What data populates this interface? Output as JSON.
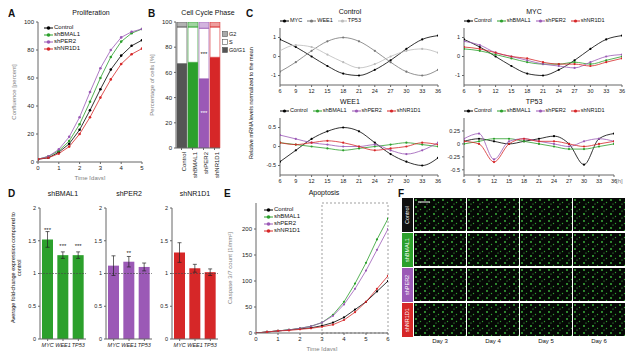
{
  "chart_data": [
    {
      "panel_label": "A",
      "type": "line",
      "title": "Proliferation",
      "xlabel": "Time [days]",
      "ylabel": "Confluence [percent]",
      "x": [
        0,
        0.5,
        1,
        1.5,
        2,
        2.5,
        3,
        3.5,
        4,
        4.5,
        5
      ],
      "xlim": [
        0,
        5
      ],
      "xticks": [
        0,
        1,
        2,
        3,
        4,
        5
      ],
      "ylim": [
        0,
        100
      ],
      "yticks": [
        0,
        20,
        40,
        60,
        80,
        100
      ],
      "legend": "top-left",
      "marker": "circle",
      "series": [
        {
          "name": "Control",
          "color": "#000000",
          "values": [
            2,
            3,
            7,
            13,
            23,
            37,
            52,
            66,
            76,
            83,
            87
          ]
        },
        {
          "name": "shBMAL1",
          "color": "#2ca02c",
          "values": [
            2,
            4,
            8,
            15,
            27,
            43,
            60,
            75,
            86,
            92,
            95
          ]
        },
        {
          "name": "shPER2",
          "color": "#9b59b6",
          "values": [
            2,
            4,
            9,
            18,
            32,
            50,
            67,
            80,
            89,
            93,
            95
          ]
        },
        {
          "name": "shNR1D1",
          "color": "#d62728",
          "values": [
            2,
            3,
            6,
            11,
            20,
            32,
            46,
            59,
            70,
            77,
            81
          ]
        }
      ]
    },
    {
      "panel_label": "B",
      "type": "bar",
      "stacked": true,
      "title": "Cell Cycle Phase",
      "ylabel": "Percentage of cells [%]",
      "categories": [
        "Control",
        "shBMAL1",
        "shPER2",
        "shNR1D1"
      ],
      "colors": [
        "#555555",
        "#2ca02c",
        "#9b59b6",
        "#d62728"
      ],
      "ylim": [
        0,
        100
      ],
      "yticks": [
        0,
        20,
        40,
        60,
        80,
        100
      ],
      "legend": "right",
      "series": [
        {
          "name": "G0/G1",
          "color": "#555555",
          "values": [
            67,
            68,
            55,
            72
          ]
        },
        {
          "name": "S",
          "color": "#ffffff",
          "values": [
            29,
            28,
            40,
            24
          ]
        },
        {
          "name": "G2",
          "color": "#aaaaaa",
          "values": [
            4,
            4,
            5,
            4
          ]
        }
      ],
      "annotations": [
        {
          "category": "shPER2",
          "series": "G0/G1",
          "text": "***"
        },
        {
          "category": "shPER2",
          "series": "S",
          "text": "***"
        }
      ]
    },
    {
      "panel_label": "C",
      "type": "line",
      "title": "Control",
      "ylabel": "Relative mRNA levels normalized to the mean",
      "x": [
        6,
        9,
        12,
        15,
        18,
        21,
        24,
        27,
        30,
        33,
        36
      ],
      "xlim": [
        6,
        36
      ],
      "xticks": [
        6,
        9,
        12,
        15,
        18,
        21,
        24,
        27,
        30,
        33,
        36
      ],
      "ylim": [
        -1.5,
        1.5
      ],
      "yticks": [
        -1,
        0,
        1
      ],
      "legend": "top",
      "marker": "circle",
      "series": [
        {
          "name": "MYC",
          "color": "#000000",
          "values": [
            0.9,
            0.5,
            0,
            -0.5,
            -0.9,
            -1,
            -0.7,
            -0.2,
            0.4,
            0.9,
            1.1
          ]
        },
        {
          "name": "WEE1",
          "color": "#777777",
          "values": [
            -0.8,
            -0.3,
            0.3,
            0.8,
            1,
            0.8,
            0.3,
            -0.3,
            -0.8,
            -1,
            -0.7
          ]
        },
        {
          "name": "TP53",
          "color": "#bbbbbb",
          "values": [
            0.3,
            0.6,
            0.5,
            0.1,
            -0.3,
            -0.6,
            -0.4,
            0,
            0.3,
            0.4,
            0.2
          ]
        }
      ]
    },
    {
      "type": "line",
      "title": "MYC",
      "x": [
        6,
        9,
        12,
        15,
        18,
        21,
        24,
        27,
        30,
        33,
        36
      ],
      "xlim": [
        6,
        36
      ],
      "xticks": [
        6,
        9,
        12,
        15,
        18,
        21,
        24,
        27,
        30,
        33,
        36
      ],
      "ylim": [
        -1.5,
        1.5
      ],
      "yticks": [
        -1,
        0,
        1
      ],
      "legend": "top",
      "marker": "circle",
      "series": [
        {
          "name": "Control",
          "color": "#000000",
          "values": [
            0.9,
            0.5,
            0,
            -0.5,
            -0.9,
            -1,
            -0.7,
            -0.2,
            0.4,
            0.9,
            1.1
          ]
        },
        {
          "name": "shBMAL1",
          "color": "#2ca02c",
          "values": [
            0.4,
            0.3,
            0.1,
            -0.1,
            -0.3,
            -0.4,
            -0.4,
            -0.3,
            -0.4,
            -0.2,
            0
          ]
        },
        {
          "name": "shPER2",
          "color": "#9b59b6",
          "values": [
            0.8,
            0.6,
            0.2,
            0,
            -0.2,
            -0.4,
            -0.5,
            -0.6,
            -0.3,
            0,
            0.1
          ]
        },
        {
          "name": "shNR1D1",
          "color": "#d62728",
          "values": [
            0.5,
            0.4,
            0.2,
            0,
            -0.1,
            -0.3,
            -0.4,
            -0.4,
            -0.5,
            -0.3,
            -0.1
          ]
        }
      ]
    },
    {
      "type": "line",
      "title": "WEE1",
      "x": [
        6,
        9,
        12,
        15,
        18,
        21,
        24,
        27,
        30,
        33,
        36
      ],
      "xlim": [
        6,
        36
      ],
      "xticks": [
        6,
        9,
        12,
        15,
        18,
        21,
        24,
        27,
        30,
        33,
        36
      ],
      "ylim": [
        -0.75,
        0.75
      ],
      "yticks": [
        -0.5,
        0,
        0.5
      ],
      "legend": "top",
      "marker": "circle",
      "series": [
        {
          "name": "Control",
          "color": "#000000",
          "values": [
            -0.4,
            -0.1,
            0.2,
            0.4,
            0.5,
            0.4,
            0.1,
            -0.2,
            -0.4,
            -0.5,
            -0.3
          ]
        },
        {
          "name": "shBMAL1",
          "color": "#2ca02c",
          "values": [
            0.1,
            0.05,
            0,
            -0.05,
            -0.1,
            -0.05,
            0,
            0.05,
            0.1,
            0.05,
            0
          ]
        },
        {
          "name": "shPER2",
          "color": "#9b59b6",
          "values": [
            0.3,
            0.2,
            0.1,
            0.05,
            0,
            0,
            0.05,
            -0.1,
            -0.2,
            -0.1,
            0.1
          ]
        },
        {
          "name": "shNR1D1",
          "color": "#d62728",
          "values": [
            0.1,
            0.05,
            0.1,
            0.15,
            0.1,
            0,
            -0.1,
            -0.05,
            0,
            0.1,
            0.05
          ]
        }
      ]
    },
    {
      "type": "line",
      "title": "TP53",
      "xlabel": "[h]",
      "x": [
        6,
        9,
        12,
        15,
        18,
        21,
        24,
        27,
        30,
        33,
        36
      ],
      "xlim": [
        6,
        36
      ],
      "xticks": [
        6,
        9,
        12,
        15,
        18,
        21,
        24,
        27,
        30,
        33,
        36
      ],
      "ylim": [
        -0.6,
        0.5
      ],
      "yticks": [
        -0.5,
        -0.25,
        0,
        0.25
      ],
      "legend": "top",
      "marker": "circle",
      "series": [
        {
          "name": "Control",
          "color": "#000000",
          "values": [
            0.05,
            0.1,
            0.05,
            0,
            0.05,
            0.1,
            0.15,
            0,
            -0.4,
            0.1,
            0.2
          ]
        },
        {
          "name": "shBMAL1",
          "color": "#2ca02c",
          "values": [
            0,
            0.05,
            0.1,
            0.1,
            0.05,
            0,
            -0.05,
            -0.1,
            -0.1,
            -0.05,
            0
          ]
        },
        {
          "name": "shPER2",
          "color": "#9b59b6",
          "values": [
            0.1,
            0.2,
            -0.3,
            0.05,
            0.1,
            0.05,
            0,
            -0.05,
            0.05,
            0.1,
            0.05
          ]
        },
        {
          "name": "shNR1D1",
          "color": "#d62728",
          "values": [
            0.05,
            0,
            -0.35,
            0,
            0.1,
            0.05,
            0.05,
            0,
            -0.05,
            0,
            0.05
          ]
        }
      ]
    },
    {
      "panel_label": "D",
      "type": "bar",
      "title": "shBMAL1",
      "ylabel": "Average fold-change expression compared to control",
      "categories": [
        "MYC",
        "WEE1",
        "TP53"
      ],
      "values": [
        1.52,
        1.28,
        1.28
      ],
      "errors": [
        0.12,
        0.05,
        0.05
      ],
      "annotations": [
        "***",
        "***",
        "***"
      ],
      "color": "#2ca02c",
      "reference_line": 1,
      "ylim": [
        0,
        2
      ],
      "yticks": [
        0,
        0.5,
        1,
        1.5,
        2
      ]
    },
    {
      "type": "bar",
      "title": "shPER2",
      "categories": [
        "MYC",
        "WEE1",
        "TP53"
      ],
      "values": [
        1.12,
        1.18,
        1.1
      ],
      "errors": [
        0.15,
        0.08,
        0.06
      ],
      "annotations": [
        null,
        "**",
        null
      ],
      "color": "#9b59b6",
      "reference_line": 1,
      "ylim": [
        0,
        2
      ],
      "yticks": [
        0,
        0.5,
        1,
        1.5,
        2
      ]
    },
    {
      "type": "bar",
      "title": "shNR1D1",
      "categories": [
        "MYC",
        "WEE1",
        "TP53"
      ],
      "values": [
        1.32,
        1.08,
        1.02
      ],
      "errors": [
        0.15,
        0.06,
        0.05
      ],
      "color": "#d62728",
      "reference_line": 1,
      "ylim": [
        0,
        2
      ],
      "yticks": [
        0,
        0.5,
        1,
        1.5,
        2
      ]
    },
    {
      "panel_label": "E",
      "type": "line",
      "title": "Apoptosis",
      "xlabel": "Time [days]",
      "ylabel": "Caspase 3/7 count [1/mm²]",
      "x": [
        0,
        0.5,
        1,
        1.5,
        2,
        2.5,
        3,
        3.5,
        4,
        4.5,
        5,
        5.5,
        6
      ],
      "xlim": [
        0,
        6
      ],
      "xticks": [
        0,
        1,
        2,
        3,
        4,
        5,
        6
      ],
      "ylim": [
        0,
        250
      ],
      "yticks": [
        0,
        50,
        100,
        150,
        200
      ],
      "legend": "top-left",
      "marker": "circle",
      "highlight_x": [
        3,
        6
      ],
      "series": [
        {
          "name": "Control",
          "color": "#000000",
          "values": [
            0,
            2,
            4,
            6,
            8,
            10,
            14,
            20,
            30,
            45,
            60,
            80,
            100
          ]
        },
        {
          "name": "shBMAL1",
          "color": "#2ca02c",
          "values": [
            0,
            2,
            4,
            6,
            9,
            13,
            20,
            35,
            60,
            95,
            135,
            180,
            220
          ]
        },
        {
          "name": "shPER2",
          "color": "#9b59b6",
          "values": [
            0,
            2,
            4,
            6,
            9,
            13,
            20,
            33,
            55,
            85,
            120,
            160,
            200
          ]
        },
        {
          "name": "shNR1D1",
          "color": "#d62728",
          "values": [
            0,
            2,
            4,
            5,
            7,
            9,
            12,
            16,
            25,
            40,
            60,
            85,
            110
          ]
        }
      ]
    },
    {
      "panel_label": "F",
      "type": "image_grid",
      "row_labels": [
        "Control",
        "shBMAL1",
        "shPER2",
        "shNR1D1"
      ],
      "column_labels": [
        "Day 3",
        "Day 4",
        "Day 5",
        "Day 6"
      ],
      "colors": [
        "#111111",
        "#2ca02c",
        "#9b59b6",
        "#d62728"
      ]
    }
  ]
}
